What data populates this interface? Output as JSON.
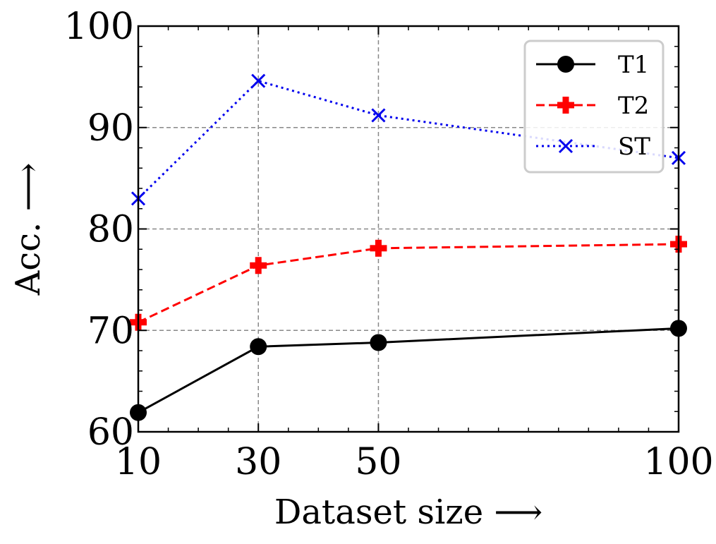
{
  "chart_data": {
    "type": "line",
    "title": "",
    "xlabel": "Dataset size ⟶",
    "ylabel": "Acc. ⟶",
    "x": [
      10,
      30,
      50,
      100
    ],
    "xlim": [
      10,
      100
    ],
    "ylim": [
      60,
      100
    ],
    "x_ticks": [
      "10",
      "30",
      "50",
      "100"
    ],
    "y_ticks": [
      "60",
      "70",
      "80",
      "90",
      "100"
    ],
    "grid": true,
    "legend_position": "top-right",
    "series": [
      {
        "name": "T1",
        "values": [
          61.9,
          68.4,
          68.8,
          70.2
        ],
        "color": "#000000",
        "line_style": "solid",
        "marker": "circle"
      },
      {
        "name": "T2",
        "values": [
          70.8,
          76.4,
          78.1,
          78.5
        ],
        "color": "#ff0000",
        "line_style": "dashed",
        "marker": "plus"
      },
      {
        "name": "ST",
        "values": [
          83.0,
          94.6,
          91.2,
          87.0
        ],
        "color": "#0000ee",
        "line_style": "dotted",
        "marker": "x"
      }
    ]
  }
}
